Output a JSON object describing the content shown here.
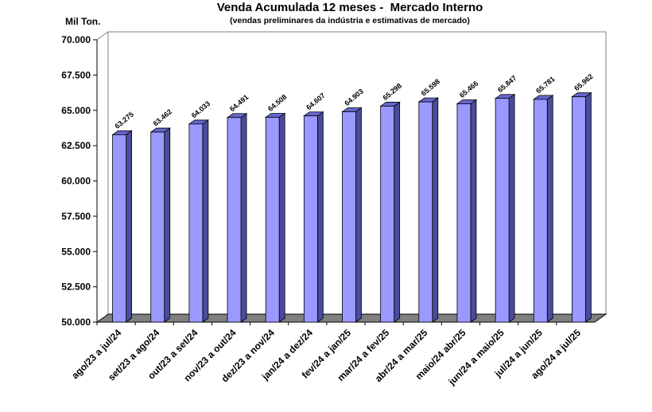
{
  "chart_data": {
    "type": "bar",
    "title": "Venda Acumulada 12 meses -  Mercado Interno",
    "subtitle": "(vendas preliminares da indústria e estimativas de mercado)",
    "ylabel": "Mil Ton.",
    "xlabel": "",
    "ylim": [
      50000,
      70000
    ],
    "ytick_step": 2500,
    "ytick_labels": [
      "50.000",
      "52.500",
      "55.000",
      "57.500",
      "60.000",
      "62.500",
      "65.000",
      "67.500",
      "70.000"
    ],
    "categories": [
      "ago/23 a jul/24",
      "set/23 a ago/24",
      "out/23 a set/24",
      "nov/23 a out/24",
      "dez/23 a nov/24",
      "jan/24 a dez/24",
      "fev/24 a jan/25",
      "mar/24 a fev/25",
      "abr/24 a mar/25",
      "maio/24 abr/25",
      "jun/24 a maio/25",
      "jul/24 a jun/25",
      "ago/24 a jul/25"
    ],
    "values": [
      63275,
      63462,
      64033,
      64491,
      64508,
      64607,
      64903,
      65298,
      65598,
      65466,
      65847,
      65781,
      65962
    ],
    "value_labels": [
      "63.275",
      "63.462",
      "64.033",
      "64.491",
      "64.508",
      "64.607",
      "64.903",
      "65.298",
      "65.598",
      "65.466",
      "65.847",
      "65.781",
      "65.962"
    ],
    "grid": false,
    "legend": "none",
    "colors": {
      "bar_front": "#9999ff",
      "bar_side": "#4b4b9c",
      "bar_top": "#6666cc",
      "bar_outline": "#000000",
      "floor": "#808080",
      "wall_line": "#808080"
    }
  }
}
